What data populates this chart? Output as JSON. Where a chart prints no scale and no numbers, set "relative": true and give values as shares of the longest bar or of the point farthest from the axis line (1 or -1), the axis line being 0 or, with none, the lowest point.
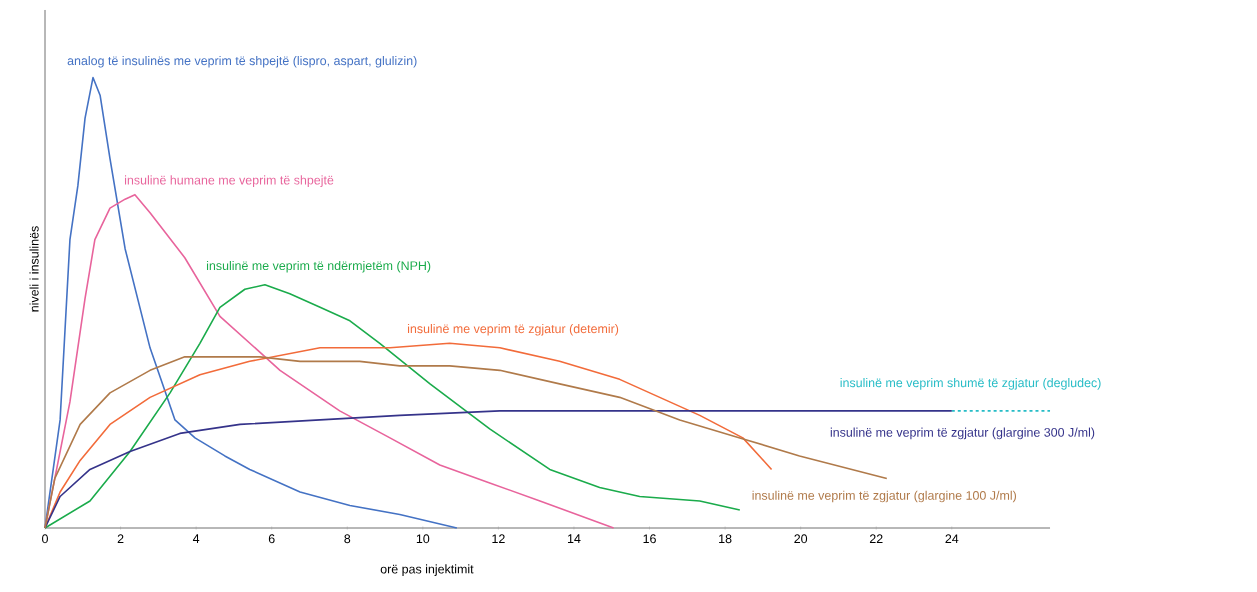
{
  "chart_data": {
    "type": "line",
    "relative": true,
    "xlabel": "orë pas injektimit",
    "ylabel": "niveli i insulinës",
    "xlim": [
      0,
      26.6
    ],
    "xticks": [
      0,
      2,
      4,
      6,
      8,
      10,
      12,
      14,
      16,
      18,
      20,
      22,
      24
    ],
    "marker": "none",
    "line_style": "solid",
    "series": [
      {
        "name": "analog të insulinës me veprim të shpejtë (lispro, aspart, glulizin)",
        "color": "#4472c4",
        "x": [
          0,
          0.4,
          0.53,
          0.66,
          0.87,
          1.06,
          1.27,
          1.46,
          1.72,
          2.12,
          2.78,
          3.44,
          3.97,
          4.76,
          5.42,
          6.75,
          8.07,
          9.39,
          10.9
        ],
        "values": [
          0,
          0.24,
          0.44,
          0.64,
          0.76,
          0.91,
          1.0,
          0.96,
          0.82,
          0.62,
          0.4,
          0.24,
          0.2,
          0.16,
          0.13,
          0.08,
          0.05,
          0.03,
          0
        ]
      },
      {
        "name": "insulinë humane me veprim të shpejtë",
        "color": "#e8649c",
        "x": [
          0,
          0.66,
          1.06,
          1.32,
          1.72,
          2.12,
          2.38,
          2.78,
          3.7,
          4.63,
          6.22,
          7.8,
          9.13,
          10.45,
          11.77,
          13.1,
          15.05
        ],
        "values": [
          0,
          0.28,
          0.51,
          0.64,
          0.71,
          0.73,
          0.74,
          0.7,
          0.6,
          0.47,
          0.35,
          0.26,
          0.2,
          0.14,
          0.1,
          0.06,
          0
        ]
      },
      {
        "name": "insulinë me veprim të ndërmjetëm (NPH)",
        "color": "#1aab4b",
        "x": [
          0,
          1.19,
          2.25,
          3.31,
          4.1,
          4.63,
          5.29,
          5.82,
          6.48,
          7.28,
          8.07,
          8.86,
          10.19,
          11.77,
          13.36,
          14.68,
          15.74,
          17.33,
          18.39
        ],
        "values": [
          0,
          0.06,
          0.17,
          0.3,
          0.41,
          0.49,
          0.53,
          0.54,
          0.52,
          0.49,
          0.46,
          0.41,
          0.32,
          0.22,
          0.13,
          0.09,
          0.07,
          0.06,
          0.04
        ]
      },
      {
        "name": "insulinë me veprim të zgjatur (detemir)",
        "color": "#f26b3a",
        "x": [
          0,
          0.4,
          0.93,
          1.72,
          2.78,
          4.1,
          5.42,
          7.28,
          9.13,
          10.71,
          12.04,
          13.62,
          15.21,
          16.8,
          17.33,
          18.47,
          19.23
        ],
        "values": [
          0,
          0.08,
          0.15,
          0.23,
          0.29,
          0.34,
          0.37,
          0.4,
          0.4,
          0.41,
          0.4,
          0.37,
          0.33,
          0.27,
          0.25,
          0.2,
          0.13
        ]
      },
      {
        "name": "insulinë me veprim shumë të zgjatur (degludec)",
        "color": "#26bcc6",
        "line_style": "dashed",
        "x": [
          24,
          26.6
        ],
        "values": [
          0.26,
          0.26
        ]
      },
      {
        "name": "insulinë me veprim të zgjatur (glargine 300 J/ml)",
        "color": "#35338a",
        "x": [
          0,
          0.4,
          1.19,
          2.25,
          3.57,
          5.16,
          7.28,
          9.39,
          12.04,
          14.68,
          17.33,
          19.97,
          24
        ],
        "values": [
          0,
          0.07,
          0.13,
          0.17,
          0.21,
          0.23,
          0.24,
          0.25,
          0.26,
          0.26,
          0.26,
          0.26,
          0.26
        ]
      },
      {
        "name": "insulinë me veprim të zgjatur (glargine 100 J/ml)",
        "color": "#b07a4a",
        "x": [
          0,
          0.26,
          0.93,
          1.72,
          2.78,
          3.7,
          4.23,
          5.69,
          6.75,
          8.33,
          9.39,
          10.71,
          12.04,
          13.62,
          15.21,
          16.8,
          18.39,
          19.97,
          22.28
        ],
        "values": [
          0,
          0.11,
          0.23,
          0.3,
          0.35,
          0.38,
          0.38,
          0.38,
          0.37,
          0.37,
          0.36,
          0.36,
          0.35,
          0.32,
          0.29,
          0.24,
          0.2,
          0.16,
          0.11
        ]
      }
    ]
  }
}
